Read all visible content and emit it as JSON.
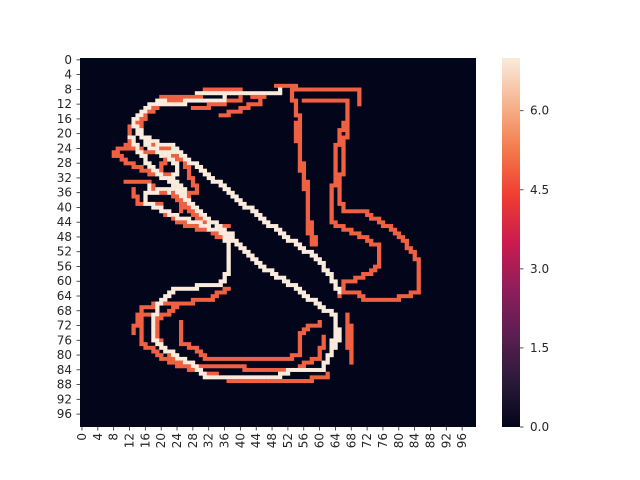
{
  "chart_data": {
    "type": "heatmap",
    "title": "",
    "xlabel": "",
    "ylabel": "",
    "n_rows": 100,
    "n_cols": 100,
    "x_tick_labels": [
      "0",
      "4",
      "8",
      "12",
      "16",
      "20",
      "24",
      "28",
      "32",
      "36",
      "40",
      "44",
      "48",
      "52",
      "56",
      "60",
      "64",
      "68",
      "72",
      "76",
      "80",
      "84",
      "88",
      "92",
      "96"
    ],
    "y_tick_labels": [
      "0",
      "4",
      "8",
      "12",
      "16",
      "20",
      "24",
      "28",
      "32",
      "36",
      "40",
      "44",
      "48",
      "52",
      "56",
      "60",
      "64",
      "68",
      "72",
      "76",
      "80",
      "84",
      "88",
      "92",
      "96"
    ],
    "colorbar": {
      "min": 0.0,
      "max": 7.0,
      "tick_labels": [
        "0.0",
        "1.5",
        "3.0",
        "4.5",
        "6.0"
      ],
      "colormap": "rocket"
    },
    "background_value": 0,
    "stroke_segments_value_5": [
      [
        [
          49,
          7
        ],
        [
          52,
          7
        ],
        [
          53,
          8
        ],
        [
          53,
          9
        ],
        [
          55,
          17
        ],
        [
          55,
          26
        ],
        [
          57,
          36
        ],
        [
          57,
          42
        ],
        [
          59,
          50
        ]
      ],
      [
        [
          46,
          10
        ],
        [
          40,
          8
        ],
        [
          33,
          8
        ],
        [
          28,
          11
        ],
        [
          22,
          11
        ],
        [
          16,
          15
        ],
        [
          12,
          19
        ],
        [
          12,
          24
        ],
        [
          15,
          25
        ],
        [
          22,
          25
        ]
      ],
      [
        [
          12,
          23
        ],
        [
          8,
          26
        ],
        [
          10,
          27
        ],
        [
          13,
          29
        ],
        [
          17,
          31
        ],
        [
          21,
          31
        ],
        [
          23,
          33
        ]
      ],
      [
        [
          11,
          33
        ],
        [
          16,
          33
        ],
        [
          18,
          35
        ],
        [
          23,
          37
        ],
        [
          25,
          39
        ],
        [
          28,
          42
        ],
        [
          31,
          44
        ],
        [
          34,
          45
        ],
        [
          37,
          45
        ]
      ],
      [
        [
          13,
          35
        ],
        [
          14,
          39
        ],
        [
          20,
          40
        ],
        [
          21,
          42
        ],
        [
          26,
          45
        ],
        [
          29,
          46
        ],
        [
          33,
          47
        ],
        [
          36,
          49
        ]
      ],
      [
        [
          54,
          7
        ],
        [
          54,
          8
        ],
        [
          68,
          8
        ],
        [
          70,
          9
        ],
        [
          70,
          12
        ]
      ],
      [
        [
          56,
          11
        ],
        [
          67,
          11
        ],
        [
          67,
          17
        ],
        [
          66,
          25
        ],
        [
          65,
          37
        ],
        [
          66,
          41
        ],
        [
          72,
          42
        ],
        [
          75,
          44
        ],
        [
          78,
          46
        ],
        [
          81,
          49
        ],
        [
          84,
          53
        ],
        [
          85,
          56
        ],
        [
          85,
          59
        ],
        [
          85,
          63
        ],
        [
          83,
          64
        ],
        [
          80,
          65
        ],
        [
          72,
          65
        ],
        [
          70,
          63
        ],
        [
          67,
          63
        ],
        [
          65,
          64
        ]
      ],
      [
        [
          66,
          17
        ],
        [
          64,
          26
        ],
        [
          64,
          33
        ],
        [
          63,
          36
        ],
        [
          63,
          44
        ],
        [
          66,
          46
        ],
        [
          72,
          49
        ],
        [
          75,
          51
        ],
        [
          75,
          56
        ],
        [
          73,
          58
        ],
        [
          69,
          60
        ],
        [
          67,
          60
        ],
        [
          65,
          63
        ]
      ],
      [
        [
          54,
          17
        ],
        [
          55,
          27
        ],
        [
          56,
          33
        ],
        [
          57,
          38
        ],
        [
          57,
          44
        ],
        [
          58,
          50
        ]
      ],
      [
        [
          37,
          62
        ],
        [
          33,
          65
        ],
        [
          28,
          66
        ],
        [
          21,
          66
        ],
        [
          15,
          68
        ],
        [
          13,
          74
        ]
      ],
      [
        [
          20,
          69
        ],
        [
          15,
          70
        ],
        [
          15,
          77
        ],
        [
          19,
          80
        ],
        [
          22,
          82
        ],
        [
          27,
          84
        ],
        [
          37,
          87
        ],
        [
          49,
          87
        ],
        [
          58,
          86
        ],
        [
          62,
          85
        ]
      ],
      [
        [
          24,
          67
        ],
        [
          19,
          71
        ],
        [
          19,
          76
        ],
        [
          22,
          80
        ],
        [
          26,
          83
        ],
        [
          33,
          83
        ],
        [
          41,
          84
        ],
        [
          53,
          84
        ],
        [
          60,
          80
        ],
        [
          61,
          75
        ]
      ],
      [
        [
          25,
          71
        ],
        [
          25,
          77
        ],
        [
          29,
          79
        ],
        [
          31,
          81
        ],
        [
          52,
          81
        ],
        [
          55,
          79
        ],
        [
          55,
          74
        ],
        [
          57,
          72
        ],
        [
          60,
          71
        ]
      ],
      [
        [
          67,
          69
        ],
        [
          67,
          78
        ]
      ],
      [
        [
          68,
          72
        ],
        [
          68,
          82
        ]
      ],
      [
        [
          20,
          10
        ],
        [
          30,
          9
        ]
      ],
      [
        [
          28,
          13
        ],
        [
          40,
          10
        ]
      ],
      [
        [
          35,
          15
        ],
        [
          45,
          11
        ]
      ],
      [
        [
          23,
          11
        ],
        [
          17,
          14
        ],
        [
          15,
          17
        ],
        [
          15,
          21
        ],
        [
          18,
          24
        ],
        [
          24,
          24
        ]
      ],
      [
        [
          20,
          31
        ],
        [
          21,
          25
        ],
        [
          26,
          28
        ],
        [
          29,
          36
        ],
        [
          25,
          38
        ],
        [
          25,
          41
        ]
      ]
    ],
    "stroke_segments_value_7": [
      [
        [
          29,
          9
        ],
        [
          39,
          9
        ],
        [
          50,
          8
        ]
      ],
      [
        [
          21,
          11
        ],
        [
          17,
          13
        ],
        [
          13,
          17
        ],
        [
          15,
          21
        ],
        [
          19,
          23
        ],
        [
          23,
          23
        ]
      ],
      [
        [
          12,
          21
        ],
        [
          17,
          29
        ],
        [
          20,
          32
        ],
        [
          24,
          34
        ],
        [
          26,
          36
        ]
      ],
      [
        [
          23,
          34
        ],
        [
          24,
          28
        ],
        [
          21,
          25
        ],
        [
          23,
          24
        ],
        [
          25,
          26
        ],
        [
          30,
          30
        ],
        [
          38,
          37
        ],
        [
          46,
          44
        ],
        [
          55,
          51
        ],
        [
          59,
          54
        ],
        [
          63,
          59
        ],
        [
          65,
          63
        ]
      ],
      [
        [
          23,
          35
        ],
        [
          29,
          41
        ],
        [
          37,
          48
        ],
        [
          45,
          56
        ],
        [
          55,
          63
        ],
        [
          60,
          67
        ],
        [
          63,
          69
        ]
      ],
      [
        [
          20,
          12
        ],
        [
          26,
          11
        ],
        [
          36,
          10
        ]
      ],
      [
        [
          15,
          19
        ],
        [
          16,
          23
        ],
        [
          23,
          28
        ]
      ],
      [
        [
          17,
          34
        ],
        [
          16,
          39
        ],
        [
          20,
          41
        ],
        [
          24,
          43
        ],
        [
          30,
          45
        ],
        [
          35,
          47
        ],
        [
          38,
          48
        ]
      ],
      [
        [
          36,
          46
        ],
        [
          37,
          53
        ],
        [
          37,
          58
        ],
        [
          35,
          61
        ],
        [
          29,
          62
        ],
        [
          23,
          63
        ],
        [
          19,
          67
        ],
        [
          18,
          71
        ],
        [
          18,
          76
        ],
        [
          21,
          79
        ],
        [
          28,
          83
        ],
        [
          31,
          86
        ],
        [
          49,
          86
        ],
        [
          52,
          84
        ],
        [
          61,
          83
        ],
        [
          63,
          79
        ],
        [
          64,
          73
        ]
      ],
      [
        [
          16,
          38
        ],
        [
          16,
          36
        ],
        [
          19,
          35
        ],
        [
          22,
          36
        ]
      ],
      [
        [
          60,
          67
        ],
        [
          64,
          70
        ],
        [
          65,
          76
        ],
        [
          63,
          79
        ]
      ]
    ]
  }
}
